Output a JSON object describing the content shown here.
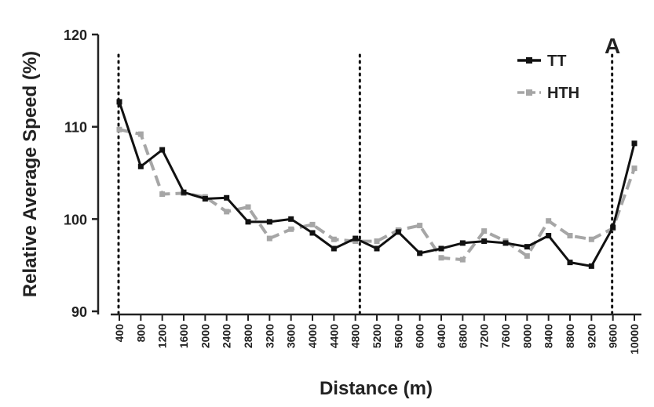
{
  "chart_data": {
    "type": "line",
    "panel_label": "A",
    "xlabel": "Distance (m)",
    "ylabel": "Relative Average Speed (%)",
    "categories": [
      "400",
      "800",
      "1200",
      "1600",
      "2000",
      "2400",
      "2800",
      "3200",
      "3600",
      "4000",
      "4400",
      "4800",
      "5200",
      "5600",
      "6000",
      "6400",
      "6800",
      "7200",
      "7600",
      "8000",
      "8400",
      "8800",
      "9200",
      "9600",
      "10000"
    ],
    "ylim": [
      90,
      120
    ],
    "yticks": [
      "90",
      "100",
      "110",
      "120"
    ],
    "grid": false,
    "legend_position": "top-right",
    "vertical_markers": [
      "400",
      "4800",
      "9600"
    ],
    "series": [
      {
        "name": "TT",
        "color": "#111111",
        "style": "solid",
        "values": [
          112.7,
          105.7,
          107.5,
          102.9,
          102.2,
          102.3,
          99.7,
          99.7,
          100.0,
          98.5,
          96.8,
          97.9,
          96.8,
          98.6,
          96.3,
          96.8,
          97.4,
          97.6,
          97.4,
          97.0,
          98.2,
          95.3,
          94.9,
          99.1,
          108.2
        ]
      },
      {
        "name": "HTH",
        "color": "#a6a6a6",
        "style": "dashed",
        "values": [
          109.7,
          109.2,
          102.7,
          102.8,
          102.4,
          100.8,
          101.3,
          97.9,
          98.9,
          99.4,
          97.8,
          97.6,
          97.6,
          98.8,
          99.3,
          95.8,
          95.6,
          98.7,
          97.6,
          96.0,
          99.8,
          98.2,
          97.8,
          99.0,
          105.5
        ]
      }
    ]
  }
}
